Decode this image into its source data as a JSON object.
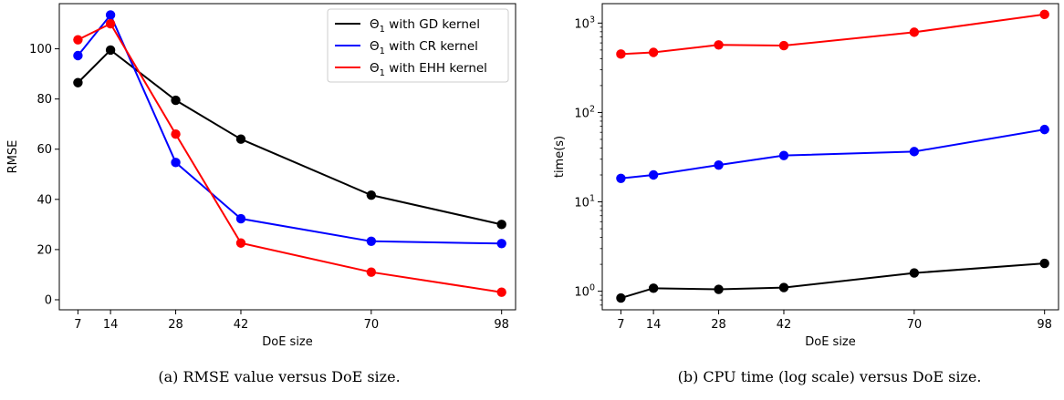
{
  "chart_data": [
    {
      "type": "line",
      "caption": "(a) RMSE value versus DoE size.",
      "xlabel": "DoE size",
      "ylabel": "RMSE",
      "x": [
        7,
        14,
        28,
        42,
        70,
        98
      ],
      "xlim": [
        3,
        101
      ],
      "ylim": [
        -4,
        118
      ],
      "yticks": [
        0,
        20,
        40,
        60,
        80,
        100
      ],
      "log_y": false,
      "grid": false,
      "legend_position": "top-right",
      "series": [
        {
          "name": "Θ₁ with GD kernel",
          "name_main": "Θ",
          "name_sub": "1",
          "name_rest": " with GD kernel",
          "color": "#000000",
          "values": [
            86.5,
            99.5,
            79.5,
            64.0,
            41.7,
            30.0
          ]
        },
        {
          "name": "Θ₁ with CR kernel",
          "name_main": "Θ",
          "name_sub": "1",
          "name_rest": " with CR kernel",
          "color": "#0000ff",
          "values": [
            97.3,
            113.5,
            54.7,
            32.3,
            23.3,
            22.4
          ]
        },
        {
          "name": "Θ₁ with EHH kernel",
          "name_main": "Θ",
          "name_sub": "1",
          "name_rest": " with EHH kernel",
          "color": "#ff0000",
          "values": [
            103.6,
            110.0,
            66.0,
            22.6,
            11.0,
            3.0
          ]
        }
      ]
    },
    {
      "type": "line",
      "caption": "(b) CPU time (log scale) versus DoE size.",
      "xlabel": "DoE size",
      "ylabel": "time(s)",
      "x": [
        7,
        14,
        28,
        42,
        70,
        98
      ],
      "xlim": [
        3,
        101
      ],
      "ylim": [
        0.62,
        1650
      ],
      "yticks": [
        1,
        10,
        100,
        1000
      ],
      "ytick_labels": [
        {
          "base": "10",
          "exp": "0"
        },
        {
          "base": "10",
          "exp": "1"
        },
        {
          "base": "10",
          "exp": "2"
        },
        {
          "base": "10",
          "exp": "3"
        }
      ],
      "log_y": true,
      "grid": false,
      "series": [
        {
          "color": "#ff0000",
          "values": [
            450,
            470,
            570,
            560,
            790,
            1250
          ]
        },
        {
          "color": "#0000ff",
          "values": [
            18.3,
            20.0,
            25.8,
            33.0,
            36.5,
            64.5
          ]
        },
        {
          "color": "#000000",
          "values": [
            0.84,
            1.08,
            1.05,
            1.1,
            1.6,
            2.05
          ]
        }
      ]
    }
  ]
}
